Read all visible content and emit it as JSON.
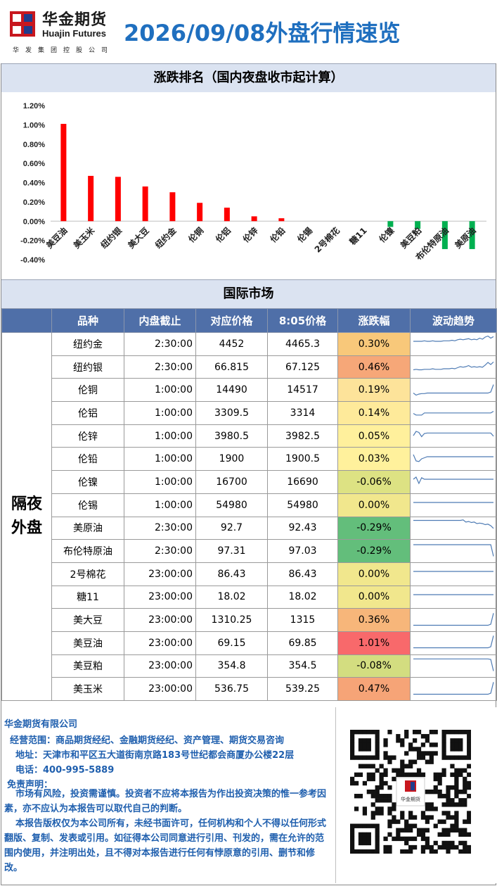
{
  "header": {
    "logo_cn": "华金期货",
    "logo_en": "Huajin Futures",
    "logo_sub": "华发集团控股公司",
    "title": "2026/09/08外盘行情速览"
  },
  "sections": {
    "chart_title": "涨跌排名（国内夜盘收市起计算）",
    "intl_title": "国际市场"
  },
  "chart_data": {
    "type": "bar",
    "title": "涨跌排名（国内夜盘收市起计算）",
    "categories": [
      "美豆油",
      "美玉米",
      "纽约银",
      "美大豆",
      "纽约金",
      "伦铜",
      "伦铝",
      "伦锌",
      "伦铅",
      "伦锡",
      "2号棉花",
      "糖11",
      "伦镍",
      "美豆粕",
      "布伦特原油",
      "美原油"
    ],
    "values": [
      1.01,
      0.47,
      0.46,
      0.36,
      0.3,
      0.19,
      0.14,
      0.05,
      0.03,
      0.0,
      0.0,
      0.0,
      -0.06,
      -0.08,
      -0.29,
      -0.29
    ],
    "yticks": [
      "1.20%",
      "1.00%",
      "0.80%",
      "0.60%",
      "0.40%",
      "0.20%",
      "0.00%",
      "-0.20%",
      "-0.40%"
    ],
    "ylim": [
      -0.4,
      1.2
    ],
    "positive_color": "#ff0000",
    "negative_color": "#00b050",
    "grid": false,
    "legend": "none"
  },
  "table": {
    "headers": [
      "品种",
      "内盘截止",
      "对应价格",
      "8:05价格",
      "涨跌幅",
      "波动趋势"
    ],
    "group_label": "隔夜外盘",
    "rows": [
      {
        "name": "纽约金",
        "cutoff": "2:30:00",
        "ref": "4452",
        "now": "4465.3",
        "chg": "0.30%",
        "chg_value": 0.3,
        "bg": "#f8c87a",
        "spark": [
          2,
          2,
          2,
          2,
          2.1,
          2,
          2,
          2.1,
          2,
          2,
          2,
          2.1,
          2.1,
          2.1,
          2.2,
          2.1,
          2.3,
          2.4,
          2.3,
          2.4,
          2.5,
          2.3,
          2.4,
          2.3,
          2.6,
          2.4,
          2.8,
          3,
          2.6,
          2.9
        ]
      },
      {
        "name": "纽约银",
        "cutoff": "2:30:00",
        "ref": "66.815",
        "now": "67.125",
        "chg": "0.46%",
        "chg_value": 0.46,
        "bg": "#f6a778",
        "spark": [
          1,
          1.1,
          1,
          1,
          1.1,
          1.1,
          1.1,
          1.2,
          1.1,
          1.1,
          1.1,
          1.2,
          1.2,
          1.2,
          1.3,
          1.2,
          1.4,
          1.6,
          1.5,
          1.6,
          1.8,
          1.5,
          1.6,
          1.5,
          1.6,
          1.5,
          1.9,
          2.4,
          2,
          2.5
        ]
      },
      {
        "name": "伦铜",
        "cutoff": "1:00:00",
        "ref": "14490",
        "now": "14517",
        "chg": "0.19%",
        "chg_value": 0.19,
        "bg": "#fde39a",
        "spark": [
          1,
          0.6,
          0.8,
          0.9,
          0.9,
          1,
          1,
          1,
          1,
          1,
          1,
          1,
          1,
          1,
          1,
          1,
          1,
          1,
          1,
          1,
          1,
          1,
          1,
          1,
          1,
          1,
          1,
          1,
          1.2,
          2.6
        ]
      },
      {
        "name": "伦铝",
        "cutoff": "1:00:00",
        "ref": "3309.5",
        "now": "3314",
        "chg": "0.14%",
        "chg_value": 0.14,
        "bg": "#feea9a",
        "spark": [
          1.4,
          1.1,
          1.1,
          1.1,
          1.5,
          1.5,
          1.5,
          1.5,
          1.5,
          1.5,
          1.5,
          1.5,
          1.5,
          1.5,
          1.5,
          1.5,
          1.5,
          1.5,
          1.5,
          1.5,
          1.5,
          1.5,
          1.5,
          1.5,
          1.5,
          1.5,
          1.5,
          1.5,
          1.5,
          1.8
        ]
      },
      {
        "name": "伦锌",
        "cutoff": "1:00:00",
        "ref": "3980.5",
        "now": "3982.5",
        "chg": "0.05%",
        "chg_value": 0.05,
        "bg": "#fff09c",
        "spark": [
          1.6,
          2.4,
          2.2,
          1.4,
          2,
          2.1,
          2.1,
          2.1,
          2.1,
          2.1,
          2.1,
          2.1,
          2.1,
          2.1,
          2.1,
          2.1,
          2.1,
          2.1,
          2.1,
          2.1,
          2.1,
          2.1,
          2.1,
          2.1,
          2.1,
          2.1,
          2.1,
          2.1,
          2.1,
          1.5
        ]
      },
      {
        "name": "伦铅",
        "cutoff": "1:00:00",
        "ref": "1900",
        "now": "1900.5",
        "chg": "0.03%",
        "chg_value": 0.03,
        "bg": "#fff19c",
        "spark": [
          2.4,
          1.2,
          1.1,
          1.6,
          1.8,
          2,
          2,
          2,
          2,
          2,
          2,
          2,
          2,
          2,
          2,
          2,
          2,
          2,
          2,
          2,
          2,
          2,
          2,
          2,
          2,
          2,
          2,
          2,
          2,
          2
        ]
      },
      {
        "name": "伦镍",
        "cutoff": "1:00:00",
        "ref": "16700",
        "now": "16690",
        "chg": "-0.06%",
        "chg_value": -0.06,
        "bg": "#dde283",
        "spark": [
          2,
          2.4,
          1.2,
          2.3,
          2,
          2,
          2,
          2,
          2,
          2,
          2,
          2,
          2,
          2,
          2,
          2,
          2,
          2,
          2,
          2,
          2,
          2,
          2,
          2,
          2,
          2,
          2,
          2,
          2,
          2
        ]
      },
      {
        "name": "伦锡",
        "cutoff": "1:00:00",
        "ref": "54980",
        "now": "54980",
        "chg": "0.00%",
        "chg_value": 0.0,
        "bg": "#f1e78d",
        "spark": [
          2,
          2,
          2,
          2,
          2,
          2,
          2,
          2,
          2,
          2,
          2,
          2,
          2,
          2,
          2,
          2,
          2,
          2,
          2,
          2,
          2,
          2,
          2,
          2,
          2,
          2,
          2,
          2,
          2,
          2
        ]
      },
      {
        "name": "美原油",
        "cutoff": "2:30:00",
        "ref": "92.7",
        "now": "92.43",
        "chg": "-0.29%",
        "chg_value": -0.29,
        "bg": "#63be7b",
        "spark": [
          3,
          3,
          3,
          3,
          3,
          3,
          3,
          3,
          3,
          3,
          3,
          3,
          3,
          3,
          3,
          3,
          3,
          3,
          3.1,
          2.7,
          2.8,
          2.6,
          2.7,
          2.4,
          2.5,
          2.4,
          2.2,
          2.3,
          2,
          1.5
        ]
      },
      {
        "name": "布伦特原油",
        "cutoff": "2:30:00",
        "ref": "97.31",
        "now": "97.03",
        "chg": "-0.29%",
        "chg_value": -0.29,
        "bg": "#63be7b",
        "spark": [
          2.8,
          2.8,
          2.8,
          2.8,
          2.8,
          2.8,
          2.8,
          2.8,
          2.8,
          2.8,
          2.8,
          2.8,
          2.8,
          2.8,
          2.8,
          2.8,
          2.8,
          2.8,
          2.8,
          2.8,
          2.8,
          2.8,
          2.8,
          2.8,
          2.8,
          2.8,
          2.8,
          2.8,
          2.8,
          0.6
        ]
      },
      {
        "name": "2号棉花",
        "cutoff": "23:00:00",
        "ref": "86.43",
        "now": "86.43",
        "chg": "0.00%",
        "chg_value": 0.0,
        "bg": "#f1e78d",
        "spark": [
          2,
          2,
          2,
          2,
          2,
          2,
          2,
          2,
          2,
          2,
          2,
          2,
          2,
          2,
          2,
          2,
          2,
          2,
          2,
          2,
          2,
          2,
          2,
          2,
          2,
          2,
          2,
          2,
          2,
          2
        ]
      },
      {
        "name": "糖11",
        "cutoff": "23:00:00",
        "ref": "18.02",
        "now": "18.02",
        "chg": "0.00%",
        "chg_value": 0.0,
        "bg": "#f1e78d",
        "spark": [
          2,
          2,
          2,
          2,
          2,
          2,
          2,
          2,
          2,
          2,
          2,
          2,
          2,
          2,
          2,
          2,
          2,
          2,
          2,
          2,
          2,
          2,
          2,
          2,
          2,
          2,
          2,
          2,
          2,
          2
        ]
      },
      {
        "name": "美大豆",
        "cutoff": "23:00:00",
        "ref": "1310.25",
        "now": "1315",
        "chg": "0.36%",
        "chg_value": 0.36,
        "bg": "#f7b67a",
        "spark": [
          0.6,
          0.6,
          0.6,
          0.6,
          0.6,
          0.6,
          0.6,
          0.6,
          0.6,
          0.6,
          0.6,
          0.6,
          0.6,
          0.6,
          0.6,
          0.6,
          0.6,
          0.6,
          0.6,
          0.6,
          0.6,
          0.6,
          0.6,
          0.6,
          0.6,
          0.6,
          0.6,
          0.6,
          0.8,
          2.9
        ]
      },
      {
        "name": "美豆油",
        "cutoff": "23:00:00",
        "ref": "69.15",
        "now": "69.85",
        "chg": "1.01%",
        "chg_value": 1.01,
        "bg": "#f8696b",
        "spark": [
          0.6,
          0.6,
          0.6,
          0.6,
          0.6,
          0.6,
          0.6,
          0.6,
          0.6,
          0.6,
          0.6,
          0.6,
          0.6,
          0.6,
          0.6,
          0.6,
          0.6,
          0.6,
          0.6,
          0.6,
          0.6,
          0.6,
          0.6,
          0.6,
          0.6,
          0.6,
          0.6,
          0.6,
          0.8,
          2.9
        ]
      },
      {
        "name": "美豆粕",
        "cutoff": "23:00:00",
        "ref": "354.8",
        "now": "354.5",
        "chg": "-0.08%",
        "chg_value": -0.08,
        "bg": "#d3dd80",
        "spark": [
          2.9,
          2.9,
          2.9,
          2.9,
          2.9,
          2.9,
          2.9,
          2.9,
          2.9,
          2.9,
          2.9,
          2.9,
          2.9,
          2.9,
          2.9,
          2.9,
          2.9,
          2.9,
          2.9,
          2.9,
          2.9,
          2.9,
          2.9,
          2.9,
          2.9,
          2.9,
          2.9,
          2.9,
          2.8,
          0.6
        ]
      },
      {
        "name": "美玉米",
        "cutoff": "23:00:00",
        "ref": "536.75",
        "now": "539.25",
        "chg": "0.47%",
        "chg_value": 0.47,
        "bg": "#f6a477",
        "spark": [
          0.6,
          0.6,
          0.6,
          0.6,
          0.6,
          0.6,
          0.6,
          0.6,
          0.6,
          0.6,
          0.6,
          0.6,
          0.6,
          0.6,
          0.6,
          0.6,
          0.6,
          0.6,
          0.6,
          0.6,
          0.6,
          0.6,
          0.6,
          0.6,
          0.6,
          0.6,
          0.6,
          0.6,
          0.8,
          2.9
        ]
      }
    ]
  },
  "footer": {
    "company": "华金期货有限公司",
    "scope": "经营范围：商品期货经纪、金融期货经纪、资产管理、期货交易咨询",
    "address": "地址：天津市和平区五大道街南京路183号世纪都会商厦办公楼22层",
    "phone": "电话：400-995-5889",
    "disclaimer_title": "免责声明：",
    "disclaimer_1": "市场有风险，投资需谨慎。投资者不应将本报告为作出投资决策的惟一参考因素，亦不应认为本报告可以取代自己的判断。",
    "disclaimer_2": "本报告版权仅为本公司所有，未经书面许可，任何机构和个人不得以任何形式翻版、复制、发表或引用。如征得本公司同意进行引用、刊发的，需在允许的范围内使用，并注明出处，且不得对本报告进行任何有悖原意的引用、删节和修改。",
    "qr_logo": "华金期货"
  }
}
